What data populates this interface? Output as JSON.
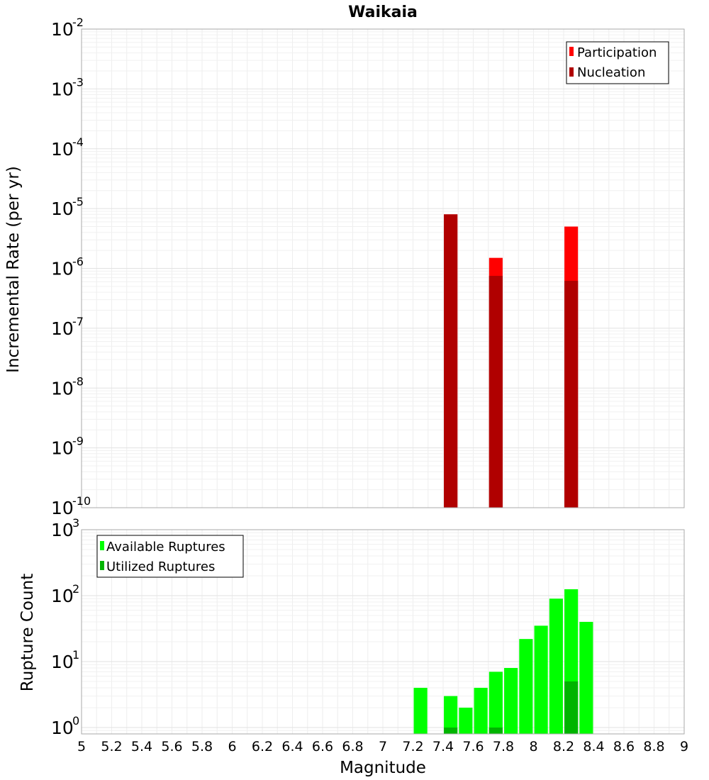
{
  "chart_data": [
    {
      "type": "bar",
      "title": "Waikaia",
      "ylabel": "Incremental Rate (per yr)",
      "xlabel": "",
      "yscale": "log",
      "ylim": [
        1e-10,
        0.01
      ],
      "xlim": [
        5,
        9
      ],
      "bar_width": 0.09,
      "y_ticks": [
        {
          "base": "10",
          "exp": "-2",
          "value": 0.01
        },
        {
          "base": "10",
          "exp": "-3",
          "value": 0.001
        },
        {
          "base": "10",
          "exp": "-4",
          "value": 0.0001
        },
        {
          "base": "10",
          "exp": "-5",
          "value": 1e-05
        },
        {
          "base": "10",
          "exp": "-6",
          "value": 1e-06
        },
        {
          "base": "10",
          "exp": "-7",
          "value": 1e-07
        },
        {
          "base": "10",
          "exp": "-8",
          "value": 1e-08
        },
        {
          "base": "10",
          "exp": "-9",
          "value": 1e-09
        },
        {
          "base": "10",
          "exp": "-10",
          "value": 1e-10
        }
      ],
      "legend_position": "top-right",
      "series": [
        {
          "name": "Participation",
          "color": "#ff0000",
          "x": [
            7.45,
            7.75,
            8.25
          ],
          "values": [
            8e-06,
            1.5e-06,
            5e-06
          ]
        },
        {
          "name": "Nucleation",
          "color": "#b00000",
          "x": [
            7.45,
            7.75,
            8.25
          ],
          "values": [
            8e-06,
            7.5e-07,
            6.2e-07
          ]
        }
      ]
    },
    {
      "type": "bar",
      "title": "",
      "ylabel": "Rupture Count",
      "xlabel": "Magnitude",
      "yscale": "log",
      "ylim": [
        0.8,
        1000
      ],
      "xlim": [
        5,
        9
      ],
      "bar_width": 0.09,
      "y_ticks": [
        {
          "base": "10",
          "exp": "3",
          "value": 1000
        },
        {
          "base": "10",
          "exp": "2",
          "value": 100
        },
        {
          "base": "10",
          "exp": "1",
          "value": 10
        },
        {
          "base": "10",
          "exp": "0",
          "value": 1
        }
      ],
      "x_ticks": [
        "5",
        "5.2",
        "5.4",
        "5.6",
        "5.8",
        "6",
        "6.2",
        "6.4",
        "6.6",
        "6.8",
        "7",
        "7.2",
        "7.4",
        "7.6",
        "7.8",
        "8",
        "8.2",
        "8.4",
        "8.6",
        "8.8",
        "9"
      ],
      "legend_position": "top-left",
      "series": [
        {
          "name": "Available Ruptures",
          "color": "#00ff00",
          "x": [
            7.25,
            7.45,
            7.55,
            7.65,
            7.75,
            7.85,
            7.95,
            8.05,
            8.15,
            8.25,
            8.35
          ],
          "values": [
            4,
            3,
            2,
            4,
            7,
            8,
            22,
            35,
            90,
            125,
            40
          ]
        },
        {
          "name": "Utilized Ruptures",
          "color": "#00b400",
          "x": [
            7.45,
            7.75,
            8.25
          ],
          "values": [
            1,
            1,
            5
          ]
        }
      ]
    }
  ]
}
